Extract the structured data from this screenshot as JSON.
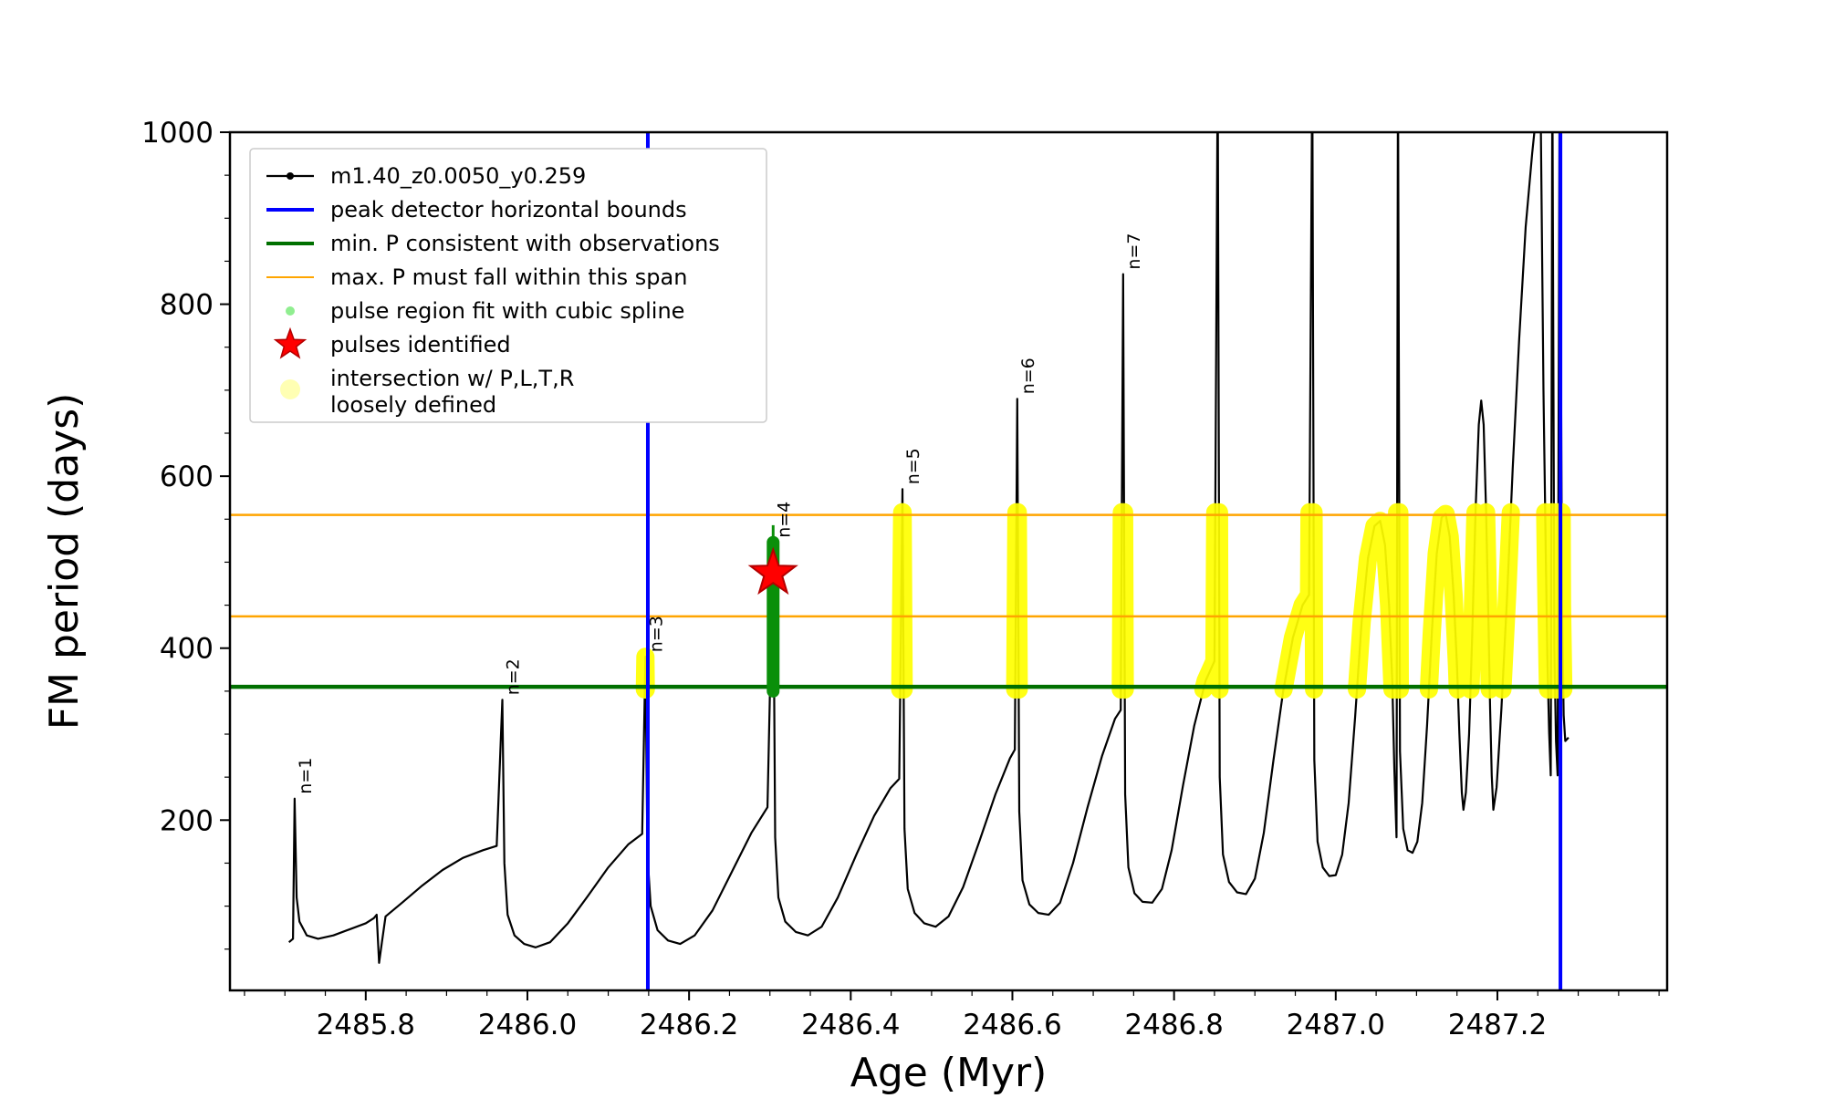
{
  "axes": {
    "xlabel": "Age (Myr)",
    "ylabel": "FM period (days)",
    "xlim": [
      2485.632,
      2487.41
    ],
    "ylim": [
      2,
      1000
    ],
    "xticks": [
      2485.8,
      2486.0,
      2486.2,
      2486.4,
      2486.6,
      2486.8,
      2487.0,
      2487.2
    ],
    "xtick_labels": [
      "2485.8",
      "2486.0",
      "2486.2",
      "2486.4",
      "2486.6",
      "2486.8",
      "2487.0",
      "2487.2"
    ],
    "yticks": [
      200,
      400,
      600,
      800,
      1000
    ],
    "ytick_labels": [
      "200",
      "400",
      "600",
      "800",
      "1000"
    ],
    "minor_x_step": 0.05,
    "minor_y_step": 50
  },
  "chart_data": {
    "type": "line",
    "title": "",
    "xlabel": "Age (Myr)",
    "ylabel": "FM period (days)",
    "xlim": [
      2485.632,
      2487.41
    ],
    "ylim": [
      2,
      1000
    ],
    "grid": false,
    "legend_position": "upper-left",
    "series": [
      {
        "name": "m1.40_z0.0050_y0.259",
        "color": "#000000",
        "points": [
          [
            2485.705,
            58
          ],
          [
            2485.71,
            62
          ],
          [
            2485.712,
            225
          ],
          [
            2485.7145,
            110
          ],
          [
            2485.718,
            82
          ],
          [
            2485.727,
            66
          ],
          [
            2485.741,
            62
          ],
          [
            2485.76,
            66
          ],
          [
            2485.78,
            73
          ],
          [
            2485.8,
            80
          ],
          [
            2485.81,
            86
          ],
          [
            2485.8135,
            90
          ],
          [
            2485.8165,
            34
          ],
          [
            2485.82,
            58
          ],
          [
            2485.8245,
            88
          ],
          [
            2485.845,
            104
          ],
          [
            2485.87,
            124
          ],
          [
            2485.895,
            142
          ],
          [
            2485.92,
            156
          ],
          [
            2485.945,
            165
          ],
          [
            2485.962,
            170
          ],
          [
            2485.969,
            340
          ],
          [
            2485.9715,
            150
          ],
          [
            2485.9755,
            90
          ],
          [
            2485.984,
            66
          ],
          [
            2485.996,
            56
          ],
          [
            2486.01,
            52
          ],
          [
            2486.028,
            58
          ],
          [
            2486.05,
            80
          ],
          [
            2486.075,
            112
          ],
          [
            2486.1,
            145
          ],
          [
            2486.125,
            172
          ],
          [
            2486.142,
            184
          ],
          [
            2486.146,
            390
          ],
          [
            2486.1485,
            160
          ],
          [
            2486.1525,
            100
          ],
          [
            2486.161,
            72
          ],
          [
            2486.174,
            60
          ],
          [
            2486.189,
            56
          ],
          [
            2486.207,
            66
          ],
          [
            2486.229,
            95
          ],
          [
            2486.253,
            140
          ],
          [
            2486.277,
            185
          ],
          [
            2486.297,
            215
          ],
          [
            2486.304,
            523
          ],
          [
            2486.3065,
            180
          ],
          [
            2486.3105,
            110
          ],
          [
            2486.319,
            82
          ],
          [
            2486.332,
            70
          ],
          [
            2486.347,
            66
          ],
          [
            2486.364,
            76
          ],
          [
            2486.384,
            110
          ],
          [
            2486.407,
            160
          ],
          [
            2486.429,
            205
          ],
          [
            2486.449,
            237
          ],
          [
            2486.46,
            248
          ],
          [
            2486.464,
            585
          ],
          [
            2486.4665,
            190
          ],
          [
            2486.4705,
            120
          ],
          [
            2486.479,
            92
          ],
          [
            2486.491,
            80
          ],
          [
            2486.505,
            76
          ],
          [
            2486.521,
            88
          ],
          [
            2486.539,
            122
          ],
          [
            2486.559,
            175
          ],
          [
            2486.579,
            230
          ],
          [
            2486.597,
            272
          ],
          [
            2486.603,
            282
          ],
          [
            2486.606,
            690
          ],
          [
            2486.6085,
            210
          ],
          [
            2486.6125,
            130
          ],
          [
            2486.621,
            102
          ],
          [
            2486.632,
            92
          ],
          [
            2486.645,
            90
          ],
          [
            2486.659,
            104
          ],
          [
            2486.675,
            150
          ],
          [
            2486.693,
            215
          ],
          [
            2486.711,
            275
          ],
          [
            2486.727,
            318
          ],
          [
            2486.734,
            328
          ],
          [
            2486.737,
            835
          ],
          [
            2486.7395,
            230
          ],
          [
            2486.7435,
            145
          ],
          [
            2486.751,
            115
          ],
          [
            2486.761,
            105
          ],
          [
            2486.773,
            104
          ],
          [
            2486.785,
            120
          ],
          [
            2486.797,
            165
          ],
          [
            2486.811,
            240
          ],
          [
            2486.825,
            310
          ],
          [
            2486.839,
            362
          ],
          [
            2486.85,
            385
          ],
          [
            2486.854,
            1080
          ],
          [
            2486.8565,
            250
          ],
          [
            2486.8605,
            160
          ],
          [
            2486.868,
            128
          ],
          [
            2486.878,
            116
          ],
          [
            2486.889,
            114
          ],
          [
            2486.9,
            132
          ],
          [
            2486.911,
            185
          ],
          [
            2486.923,
            270
          ],
          [
            2486.935,
            350
          ],
          [
            2486.947,
            412
          ],
          [
            2486.959,
            450
          ],
          [
            2486.967,
            462
          ],
          [
            2486.971,
            1080
          ],
          [
            2486.9735,
            270
          ],
          [
            2486.9775,
            175
          ],
          [
            2486.984,
            145
          ],
          [
            2486.992,
            135
          ],
          [
            2487.0,
            136
          ],
          [
            2487.008,
            160
          ],
          [
            2487.016,
            220
          ],
          [
            2487.024,
            320
          ],
          [
            2487.032,
            430
          ],
          [
            2487.04,
            505
          ],
          [
            2487.048,
            542
          ],
          [
            2487.055,
            548
          ],
          [
            2487.061,
            520
          ],
          [
            2487.066,
            450
          ],
          [
            2487.07,
            360
          ],
          [
            2487.0725,
            260
          ],
          [
            2487.0752,
            180
          ],
          [
            2487.077,
            1080
          ],
          [
            2487.0795,
            280
          ],
          [
            2487.0835,
            190
          ],
          [
            2487.089,
            165
          ],
          [
            2487.095,
            162
          ],
          [
            2487.101,
            175
          ],
          [
            2487.107,
            220
          ],
          [
            2487.113,
            310
          ],
          [
            2487.119,
            420
          ],
          [
            2487.125,
            510
          ],
          [
            2487.131,
            552
          ],
          [
            2487.136,
            556
          ],
          [
            2487.141,
            530
          ],
          [
            2487.146,
            460
          ],
          [
            2487.15,
            380
          ],
          [
            2487.153,
            300
          ],
          [
            2487.156,
            232
          ],
          [
            2487.158,
            212
          ],
          [
            2487.161,
            232
          ],
          [
            2487.165,
            300
          ],
          [
            2487.169,
            420
          ],
          [
            2487.173,
            560
          ],
          [
            2487.177,
            660
          ],
          [
            2487.18,
            688
          ],
          [
            2487.183,
            660
          ],
          [
            2487.186,
            560
          ],
          [
            2487.189,
            430
          ],
          [
            2487.191,
            330
          ],
          [
            2487.193,
            252
          ],
          [
            2487.195,
            212
          ],
          [
            2487.199,
            238
          ],
          [
            2487.205,
            330
          ],
          [
            2487.212,
            460
          ],
          [
            2487.219,
            610
          ],
          [
            2487.227,
            760
          ],
          [
            2487.235,
            890
          ],
          [
            2487.243,
            975
          ],
          [
            2487.249,
            1030
          ],
          [
            2487.2535,
            1030
          ],
          [
            2487.257,
            700
          ],
          [
            2487.26,
            500
          ],
          [
            2487.262,
            380
          ],
          [
            2487.264,
            302
          ],
          [
            2487.266,
            252
          ],
          [
            2487.268,
            1080
          ],
          [
            2487.2705,
            400
          ],
          [
            2487.2725,
            292
          ],
          [
            2487.2745,
            252
          ],
          [
            2487.277,
            1080
          ],
          [
            2487.28,
            450
          ],
          [
            2487.282,
            322
          ],
          [
            2487.284,
            292
          ],
          [
            2487.288,
            296
          ]
        ]
      }
    ],
    "overlays": {
      "blue_vlines": {
        "x": [
          2486.149,
          2487.278
        ],
        "color": "#0000ff",
        "label": "peak detector horizontal bounds"
      },
      "green_hline": {
        "y": 355,
        "color": "#007000",
        "label": "min. P consistent with observations"
      },
      "orange_hlines": {
        "y": [
          437,
          555
        ],
        "color": "#ffa500",
        "label": "max. P must fall within this span"
      },
      "pulse_region": {
        "x": 2486.304,
        "y0": 350,
        "y1": 523,
        "tip_y": 543,
        "color": "#0a8f0a",
        "label": "pulse region fit with cubic spline"
      },
      "pulses_identified": {
        "points": [
          [
            2486.304,
            487
          ]
        ],
        "color": "#ff0000",
        "label": "pulses identified"
      },
      "yellow_band": {
        "ymin": 352,
        "ymax": 558,
        "xmin": 2486.13,
        "exclude_x": [
          2486.298,
          2486.311
        ],
        "color": "#ffff00",
        "label": "intersection w/ P,L,T,R loosely defined"
      }
    },
    "peak_labels": [
      {
        "text": "n=1",
        "x": 2485.712,
        "y": 225
      },
      {
        "text": "n=2",
        "x": 2485.969,
        "y": 340
      },
      {
        "text": "n=3",
        "x": 2486.146,
        "y": 390
      },
      {
        "text": "n=4",
        "x": 2486.304,
        "y": 523
      },
      {
        "text": "n=5",
        "x": 2486.464,
        "y": 585
      },
      {
        "text": "n=6",
        "x": 2486.606,
        "y": 690
      },
      {
        "text": "n=7",
        "x": 2486.737,
        "y": 835
      }
    ]
  },
  "legend": {
    "entries": [
      {
        "label": "m1.40_z0.0050_y0.259",
        "marker": "line-dot",
        "color": "#000000"
      },
      {
        "label": "peak detector horizontal bounds",
        "marker": "line",
        "color": "#0000ff",
        "lw": 4
      },
      {
        "label": "min. P consistent with observations",
        "marker": "line",
        "color": "#007000",
        "lw": 4
      },
      {
        "label": "max. P must fall within this span",
        "marker": "line",
        "color": "#ffa500",
        "lw": 2
      },
      {
        "label": "pulse region fit with cubic spline",
        "marker": "dot",
        "color": "#90ee90",
        "size": 5
      },
      {
        "label": "pulses identified",
        "marker": "star",
        "color": "#ff0000",
        "size": 14
      },
      {
        "label": "intersection w/ P,L,T,R",
        "label2": "loosely defined",
        "marker": "dot",
        "color": "#ffffb3",
        "size": 11
      }
    ]
  }
}
